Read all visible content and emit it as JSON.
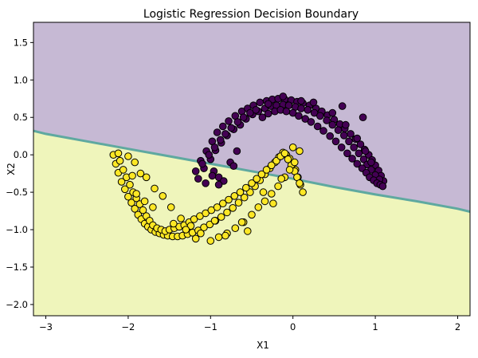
{
  "chart_data": {
    "type": "scatter",
    "title": "Logistic Regression Decision Boundary",
    "xlabel": "X1",
    "ylabel": "X2",
    "xlim": [
      -3.15,
      2.15
    ],
    "ylim": [
      -2.15,
      1.77
    ],
    "xticks": [
      "−3",
      "−2",
      "−1",
      "0",
      "1",
      "2"
    ],
    "xtick_values": [
      -3,
      -2,
      -1,
      0,
      1,
      2
    ],
    "yticks": [
      "−2.0",
      "−1.5",
      "−1.0",
      "−0.5",
      "0.0",
      "0.5",
      "1.0",
      "1.5"
    ],
    "ytick_values": [
      -2.0,
      -1.5,
      -1.0,
      -0.5,
      0.0,
      0.5,
      1.0,
      1.5
    ],
    "grid": false,
    "decision_boundary": {
      "x": [
        -3.15,
        -3.0,
        -2.5,
        -2.0,
        -1.5,
        -1.0,
        -0.5,
        0.0,
        0.5,
        1.0,
        1.5,
        2.0,
        2.15
      ],
      "y": [
        0.32,
        0.28,
        0.18,
        0.08,
        -0.02,
        -0.12,
        -0.22,
        -0.32,
        -0.43,
        -0.53,
        -0.62,
        -0.72,
        -0.76
      ]
    },
    "regions": [
      {
        "class": 0,
        "color": "#c6b9d4",
        "side": "above"
      },
      {
        "class": 1,
        "color": "#eff5bb",
        "side": "below"
      }
    ],
    "series": [
      {
        "class": 0,
        "color": "#440154",
        "x": [
          -1.18,
          -1.12,
          -1.05,
          -0.98,
          -0.92,
          -0.85,
          -0.78,
          -0.7,
          -0.62,
          -0.55,
          -0.48,
          -0.4,
          -0.32,
          -0.25,
          -0.18,
          -0.1,
          -0.02,
          0.05,
          0.12,
          0.2,
          0.28,
          0.35,
          0.42,
          0.5,
          0.57,
          0.63,
          0.7,
          0.76,
          0.82,
          0.87,
          0.92,
          0.96,
          1.0,
          1.04,
          1.07,
          1.1,
          -1.15,
          -1.08,
          -1.0,
          -0.94,
          -0.87,
          -0.8,
          -0.72,
          -0.64,
          -0.57,
          -0.49,
          -0.42,
          -0.34,
          -0.27,
          -0.2,
          -0.12,
          -0.05,
          0.03,
          0.1,
          0.18,
          0.26,
          0.33,
          0.41,
          0.48,
          0.55,
          0.62,
          0.68,
          0.74,
          0.8,
          0.86,
          0.9,
          0.95,
          1.0,
          1.05,
          -1.1,
          -1.02,
          -0.95,
          -0.88,
          -0.82,
          -0.75,
          -0.67,
          -0.6,
          -0.52,
          -0.45,
          -0.37,
          -0.3,
          -0.22,
          -0.15,
          -0.08,
          0.0,
          0.07,
          0.15,
          0.22,
          0.3,
          0.37,
          0.45,
          0.52,
          0.59,
          0.66,
          0.72,
          0.78,
          0.84,
          0.89,
          0.93,
          0.98,
          1.02,
          1.06,
          1.09,
          -0.96,
          -0.9,
          -0.84,
          -0.76,
          -0.68,
          -0.3,
          -0.12,
          0.1,
          0.25,
          0.48,
          0.64,
          0.78,
          0.88,
          0.95,
          -1.06,
          -0.98,
          -0.9,
          -0.72,
          0.6,
          0.85
        ],
        "y": [
          -0.22,
          -0.08,
          0.05,
          0.18,
          0.3,
          0.38,
          0.45,
          0.52,
          0.58,
          0.62,
          0.66,
          0.7,
          0.72,
          0.74,
          0.75,
          0.74,
          0.73,
          0.71,
          0.69,
          0.66,
          0.62,
          0.58,
          0.53,
          0.47,
          0.41,
          0.35,
          0.28,
          0.21,
          0.14,
          0.07,
          0.0,
          -0.07,
          -0.14,
          -0.21,
          -0.28,
          -0.35,
          -0.32,
          -0.18,
          -0.06,
          0.06,
          0.16,
          0.26,
          0.34,
          0.4,
          0.48,
          0.54,
          0.58,
          0.62,
          0.65,
          0.66,
          0.67,
          0.66,
          0.64,
          0.62,
          0.6,
          0.56,
          0.52,
          0.46,
          0.4,
          0.33,
          0.26,
          0.18,
          0.1,
          0.02,
          -0.06,
          -0.13,
          -0.2,
          -0.27,
          -0.33,
          -0.12,
          0.0,
          0.1,
          0.2,
          0.28,
          0.36,
          0.44,
          0.5,
          0.56,
          0.6,
          0.5,
          0.55,
          0.58,
          0.6,
          0.58,
          0.56,
          0.52,
          0.48,
          0.44,
          0.38,
          0.32,
          0.25,
          0.18,
          0.1,
          0.02,
          -0.05,
          -0.12,
          -0.18,
          -0.24,
          -0.3,
          -0.34,
          -0.38,
          -0.4,
          -0.42,
          -0.22,
          -0.3,
          -0.35,
          -0.1,
          0.05,
          0.68,
          0.78,
          0.72,
          0.7,
          0.56,
          0.4,
          0.22,
          0.05,
          -0.1,
          -0.38,
          -0.28,
          -0.4,
          -0.15,
          0.65,
          0.5
        ]
      },
      {
        "class": 1,
        "color": "#fde725",
        "x": [
          -2.18,
          -2.15,
          -2.12,
          -2.08,
          -2.04,
          -2.0,
          -1.96,
          -1.92,
          -1.88,
          -1.84,
          -1.8,
          -1.76,
          -1.72,
          -1.67,
          -1.62,
          -1.57,
          -1.52,
          -1.46,
          -1.4,
          -1.34,
          -1.28,
          -1.22,
          -1.15,
          -1.08,
          -1.01,
          -0.94,
          -0.87,
          -0.8,
          -0.73,
          -0.66,
          -0.59,
          -0.52,
          -0.46,
          -0.4,
          -0.34,
          -0.28,
          -0.22,
          -0.17,
          -0.12,
          -0.08,
          -0.04,
          0.0,
          0.03,
          0.06,
          0.09,
          0.12,
          -2.1,
          -2.06,
          -2.02,
          -1.98,
          -1.94,
          -1.9,
          -1.86,
          -1.82,
          -1.78,
          -1.74,
          -1.7,
          -1.65,
          -1.6,
          -1.55,
          -1.5,
          -1.44,
          -1.38,
          -1.32,
          -1.26,
          -1.2,
          -1.13,
          -1.06,
          -0.99,
          -0.92,
          -0.85,
          -0.78,
          -0.71,
          -0.64,
          -0.57,
          -0.5,
          -0.44,
          -0.38,
          -0.32,
          -0.26,
          -0.2,
          -0.15,
          -0.1,
          -0.06,
          -0.02,
          0.02,
          0.05,
          0.08,
          -2.12,
          -2.0,
          -1.92,
          -1.85,
          -1.78,
          -1.68,
          -1.58,
          -1.48,
          -1.36,
          -1.24,
          -1.12,
          -1.0,
          -0.9,
          -0.8,
          -0.7,
          -0.6,
          -0.5,
          -0.42,
          -0.34,
          -0.26,
          -0.18,
          -0.1,
          -0.04,
          0.02,
          0.08,
          -1.95,
          -1.9,
          -1.8,
          -1.7,
          -1.45,
          -1.3,
          -1.18,
          -0.95,
          -0.82,
          -0.62,
          -0.55,
          -0.36,
          -0.24,
          -0.14,
          0.0
        ],
        "y": [
          0.0,
          -0.12,
          -0.24,
          -0.36,
          -0.46,
          -0.56,
          -0.64,
          -0.72,
          -0.8,
          -0.86,
          -0.92,
          -0.96,
          -1.0,
          -1.03,
          -1.05,
          -1.07,
          -1.08,
          -1.09,
          -1.09,
          -1.08,
          -1.06,
          -1.04,
          -1.01,
          -0.97,
          -0.93,
          -0.88,
          -0.83,
          -0.77,
          -0.71,
          -0.64,
          -0.57,
          -0.5,
          -0.42,
          -0.34,
          -0.26,
          -0.18,
          -0.1,
          -0.03,
          0.03,
          0.0,
          -0.05,
          -0.12,
          -0.2,
          -0.3,
          -0.4,
          -0.5,
          -0.08,
          -0.2,
          -0.3,
          -0.4,
          -0.5,
          -0.58,
          -0.66,
          -0.74,
          -0.82,
          -0.88,
          -0.94,
          -0.98,
          -1.0,
          -1.02,
          -1.0,
          -0.98,
          -0.96,
          -0.94,
          -0.9,
          -0.86,
          -0.82,
          -0.78,
          -0.74,
          -0.7,
          -0.65,
          -0.6,
          -0.55,
          -0.5,
          -0.44,
          -0.38,
          -0.32,
          -0.26,
          -0.2,
          -0.14,
          -0.08,
          -0.02,
          0.02,
          -0.06,
          -0.14,
          -0.22,
          -0.3,
          -0.38,
          0.02,
          -0.02,
          -0.1,
          -0.25,
          -0.3,
          -0.45,
          -0.55,
          -0.7,
          -0.85,
          -0.95,
          -1.05,
          -1.15,
          -1.1,
          -1.05,
          -0.98,
          -0.9,
          -0.8,
          -0.7,
          -0.62,
          -0.52,
          -0.42,
          -0.3,
          -0.2,
          -0.1,
          0.05,
          -0.28,
          -0.52,
          -0.62,
          -0.7,
          -0.92,
          -1.0,
          -1.12,
          -0.88,
          -1.08,
          -0.9,
          -1.02,
          -0.5,
          -0.65,
          -0.32,
          0.1
        ]
      }
    ]
  }
}
